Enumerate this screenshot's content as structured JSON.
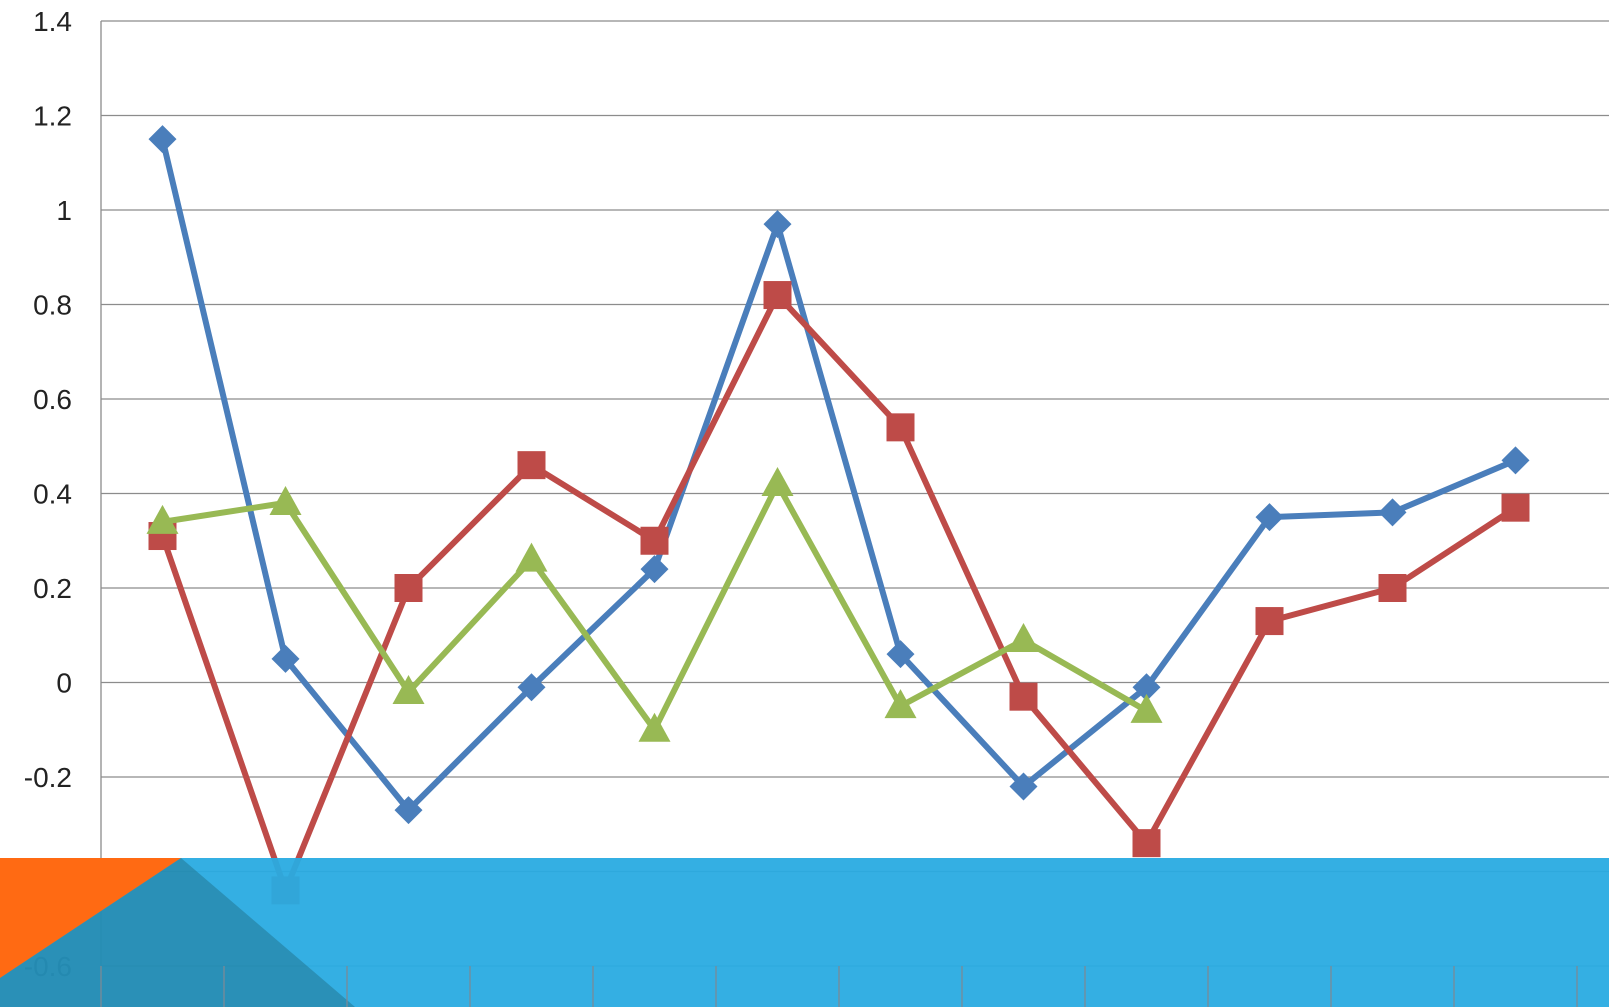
{
  "chart_data": {
    "type": "line",
    "title": "",
    "xlabel": "",
    "ylabel": "",
    "ylim": [
      -0.6,
      1.4
    ],
    "y_ticks": [
      1.4,
      1.2,
      1,
      0.8,
      0.6,
      0.4,
      0.2,
      0,
      -0.2,
      -0.4,
      -0.6
    ],
    "y_tick_labels": [
      "1.4",
      "1.2",
      "1",
      "0.8",
      "0.6",
      "0.4",
      "0.2",
      "0",
      "-0.2",
      "-0.4",
      "-0.6"
    ],
    "categories_count": 12,
    "grid": true,
    "legend": "none",
    "series": [
      {
        "color": "#4a7ebb",
        "marker": "diamond",
        "values": [
          1.15,
          0.05,
          -0.27,
          -0.01,
          0.24,
          0.97,
          0.06,
          -0.22,
          -0.01,
          0.35,
          0.36,
          0.47
        ]
      },
      {
        "color": "#be4b48",
        "marker": "square",
        "values": [
          0.31,
          -0.44,
          0.2,
          0.46,
          0.3,
          0.82,
          0.54,
          -0.03,
          -0.34,
          0.13,
          0.2,
          0.37
        ]
      },
      {
        "color": "#98b954",
        "marker": "triangle",
        "values": [
          0.34,
          0.38,
          -0.02,
          0.26,
          -0.1,
          0.42,
          -0.05,
          0.09,
          -0.06,
          null,
          null,
          null
        ]
      }
    ]
  },
  "overlay": {
    "band_color": "#29abe2",
    "accent_color": "#ff6a13"
  }
}
